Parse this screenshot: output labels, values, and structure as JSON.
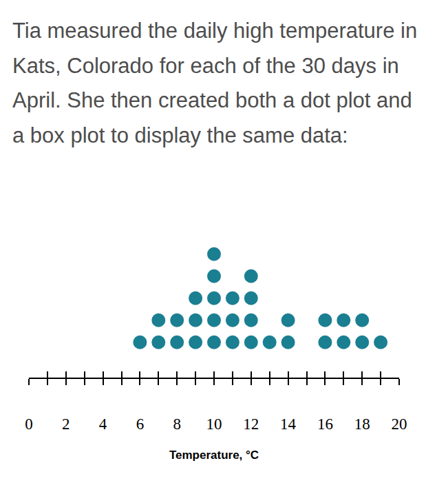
{
  "chart_data": {
    "type": "dot",
    "title": "Tia measured the daily high temperature in Kats, Colorado for each of the 30 days in April. She then created both a dot plot and a box plot to display the same data:",
    "xlabel": "Temperature, °C",
    "x": [
      6,
      7,
      8,
      9,
      10,
      11,
      12,
      13,
      14,
      15,
      16,
      17,
      18,
      19
    ],
    "values": [
      1,
      2,
      2,
      3,
      5,
      3,
      4,
      1,
      2,
      0,
      2,
      2,
      2,
      1
    ],
    "color": "#1b7f92",
    "xlim": [
      0,
      20
    ],
    "xticks": [
      0,
      2,
      4,
      6,
      8,
      10,
      12,
      14,
      16,
      18,
      20
    ],
    "tick_labels": "x",
    "grid": false
  }
}
